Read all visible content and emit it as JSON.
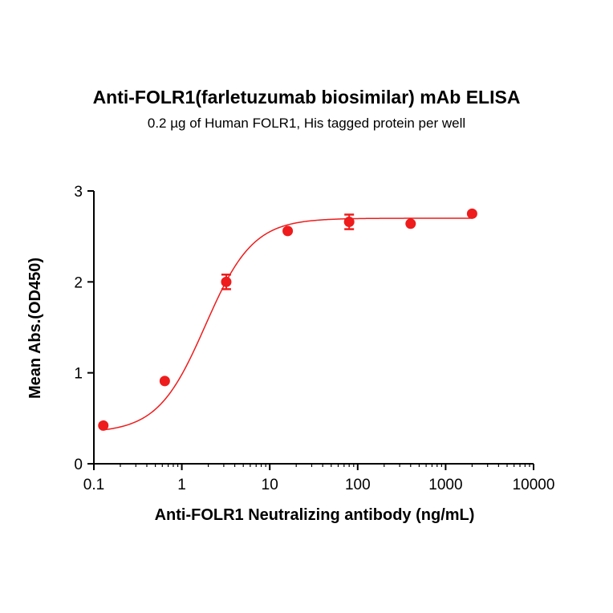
{
  "chart_data": {
    "type": "scatter",
    "title": "Anti-FOLR1(farletuzumab biosimilar) mAb ELISA",
    "subtitle": "0.2 µg of Human FOLR1, His tagged protein per well",
    "xlabel": "Anti-FOLR1 Neutralizing antibody (ng/mL)",
    "ylabel": "Mean Abs.(OD450)",
    "x_scale": "log",
    "xlim": [
      0.1,
      10000
    ],
    "ylim": [
      0,
      3
    ],
    "x_ticks": [
      "0.1",
      "1",
      "10",
      "100",
      "1000",
      "10000"
    ],
    "y_ticks": [
      "0",
      "1",
      "2",
      "3"
    ],
    "grid": false,
    "series": [
      {
        "color": "#ee1c1c",
        "x": [
          0.128,
          0.64,
          3.2,
          16,
          80,
          400,
          2000
        ],
        "y": [
          0.42,
          0.91,
          2.0,
          2.56,
          2.66,
          2.64,
          2.75
        ],
        "error": [
          0.01,
          0.02,
          0.08,
          0.02,
          0.08,
          0.02,
          0.02
        ]
      }
    ]
  }
}
